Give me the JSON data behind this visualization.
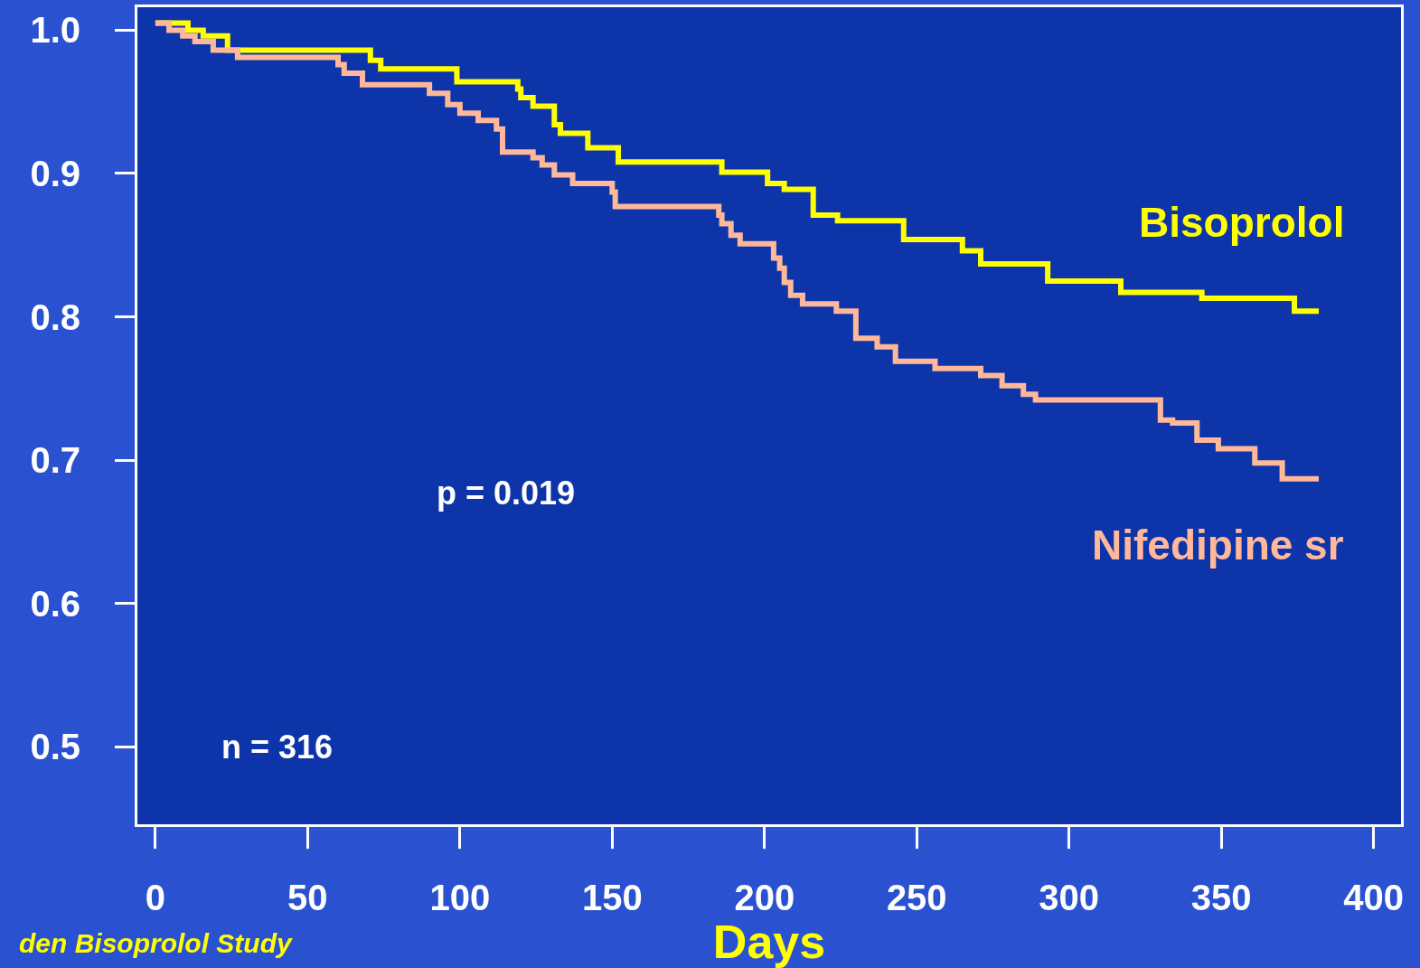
{
  "chart_data": {
    "type": "step",
    "xlabel": "Days",
    "xlim": [
      -5.9,
      409
    ],
    "xticks": [
      0,
      50,
      100,
      150,
      200,
      250,
      300,
      350,
      400
    ],
    "ylim": [
      0.446,
      1.016
    ],
    "yticks": [
      0.5,
      0.6,
      0.7,
      0.8,
      0.9,
      {
        "value": 1.0,
        "label": "1.0"
      }
    ],
    "grid": false,
    "legend": false,
    "series": [
      {
        "name": "Bisoprolol",
        "color": "#ffff00",
        "x": [
          0,
          10.7,
          15.7,
          23.7,
          70.6,
          74,
          99,
          119,
          120,
          124,
          131,
          133,
          142,
          152,
          186,
          201,
          206.5,
          216,
          224,
          245.7,
          265,
          271,
          293,
          317,
          343.6,
          374,
          382
        ],
        "values": [
          1.005,
          1.0,
          0.996,
          0.986,
          0.979,
          0.973,
          0.964,
          0.959,
          0.953,
          0.947,
          0.934,
          0.928,
          0.918,
          0.908,
          0.901,
          0.893,
          0.889,
          0.871,
          0.867,
          0.854,
          0.846,
          0.837,
          0.825,
          0.817,
          0.813,
          0.804,
          0.804
        ]
      },
      {
        "name": "Nifedipine sr",
        "color": "#ffb89a",
        "x": [
          0,
          4.5,
          9,
          13,
          19,
          27,
          60,
          62,
          68,
          90,
          96,
          100,
          106,
          112,
          114,
          124,
          127,
          131,
          137,
          150,
          151,
          185,
          186,
          189,
          192,
          203,
          205,
          206.5,
          208.6,
          212.5,
          223.6,
          230,
          237,
          243,
          256,
          271,
          278,
          285,
          289,
          330,
          334,
          342,
          349,
          361,
          370,
          382
        ],
        "values": [
          1.005,
          1.0,
          0.996,
          0.992,
          0.986,
          0.981,
          0.976,
          0.97,
          0.962,
          0.956,
          0.948,
          0.942,
          0.937,
          0.931,
          0.915,
          0.911,
          0.906,
          0.899,
          0.893,
          0.887,
          0.877,
          0.871,
          0.865,
          0.857,
          0.851,
          0.841,
          0.834,
          0.824,
          0.815,
          0.809,
          0.804,
          0.785,
          0.779,
          0.769,
          0.764,
          0.759,
          0.752,
          0.746,
          0.742,
          0.728,
          0.726,
          0.714,
          0.708,
          0.698,
          0.687,
          0.687
        ]
      }
    ],
    "annotations": [
      "p = 0.019",
      "n = 316",
      "den Bisoprolol Study"
    ]
  }
}
